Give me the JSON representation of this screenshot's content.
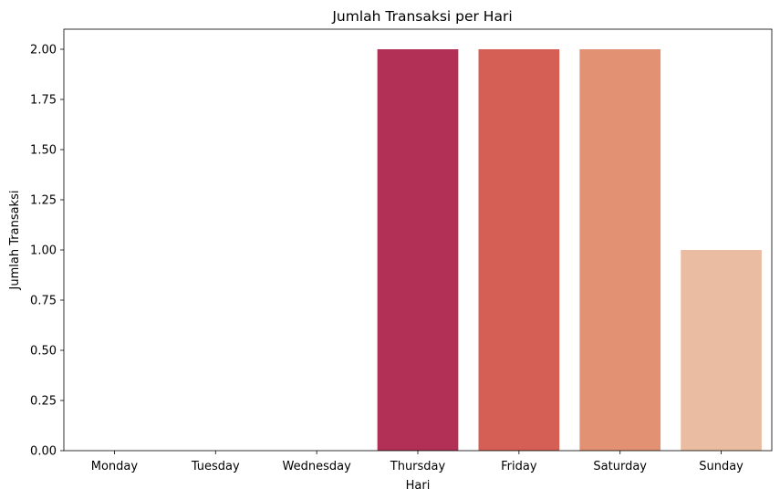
{
  "chart_data": {
    "type": "bar",
    "title": "Jumlah Transaksi per Hari",
    "xlabel": "Hari",
    "ylabel": "Jumlah Transaksi",
    "categories": [
      "Monday",
      "Tuesday",
      "Wednesday",
      "Thursday",
      "Friday",
      "Saturday",
      "Sunday"
    ],
    "values": [
      0,
      0,
      0,
      2,
      2,
      2,
      1
    ],
    "colors": [
      "#3b0f4f",
      "#6e1f57",
      "#a02558",
      "#b22f55",
      "#d55f55",
      "#e29272",
      "#eabda3"
    ],
    "ylim": [
      0,
      2.1
    ],
    "yticks": [
      "0.00",
      "0.25",
      "0.50",
      "0.75",
      "1.00",
      "1.25",
      "1.50",
      "1.75",
      "2.00"
    ],
    "ytick_values": [
      0,
      0.25,
      0.5,
      0.75,
      1.0,
      1.25,
      1.5,
      1.75,
      2.0
    ],
    "grid": false,
    "legend": "none"
  }
}
